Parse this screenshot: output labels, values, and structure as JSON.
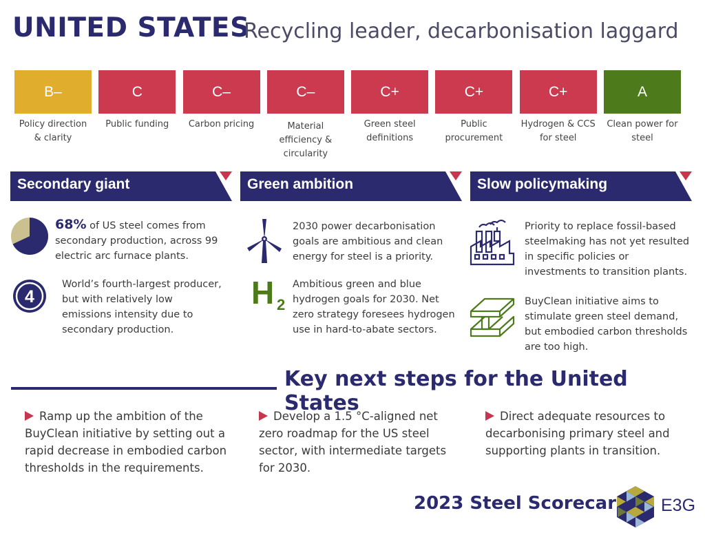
{
  "header": {
    "title": "UNITED STATES",
    "subtitle": "Recycling leader, decarbonisation laggard"
  },
  "colors": {
    "navy": "#2b2a6e",
    "grade_yellow": "#e0ad2c",
    "grade_red": "#cc3a50",
    "grade_green": "#4d7a1a",
    "marker_red": "#c8354e"
  },
  "scores": [
    {
      "grade": "B–",
      "label": "Policy direction & clarity",
      "color": "#e0ad2c"
    },
    {
      "grade": "C",
      "label": "Public funding",
      "color": "#cc3a50"
    },
    {
      "grade": "C–",
      "label": "Carbon pricing",
      "color": "#cc3a50"
    },
    {
      "grade": "C–",
      "label": "Material efficiency & circularity",
      "color": "#cc3a50"
    },
    {
      "grade": "C+",
      "label": "Green steel definitions",
      "color": "#cc3a50"
    },
    {
      "grade": "C+",
      "label": "Public procurement",
      "color": "#cc3a50"
    },
    {
      "grade": "C+",
      "label": "Hydrogen & CCS for steel",
      "color": "#cc3a50"
    },
    {
      "grade": "A",
      "label": "Clean power for steel",
      "color": "#4d7a1a"
    }
  ],
  "sections": {
    "secondary": {
      "title": "Secondary giant",
      "stat_value": "68%",
      "stat_fraction": 0.68,
      "stat_text": " of US steel comes from secondary production, across 99 electric arc furnace plants.",
      "rank_number": "4",
      "rank_text": "World’s fourth-largest producer, but with relatively low emissions intensity due to secondary production."
    },
    "green": {
      "title": "Green ambition",
      "wind_text": "2030 power decarbonisation goals are ambitious and clean energy for steel is a priority.",
      "h2_main": "H",
      "h2_sub": "2",
      "hydrogen_text": "Ambitious green and blue hydrogen goals for 2030. Net zero strategy foresees hydrogen use in hard-to-abate sectors."
    },
    "slow": {
      "title": "Slow policymaking",
      "factory_text": "Priority to replace fossil-based steelmaking has not yet resulted in specific policies or investments to transition plants.",
      "buyclean_text": "BuyClean initiative aims to stimulate green steel demand, but embodied carbon thresholds are too high."
    }
  },
  "next_steps": {
    "title": "Key next steps for the United States",
    "items": [
      "Ramp up the ambition of the BuyClean initiative by setting out a rapid decrease in embodied carbon thresholds in the requirements.",
      "Develop a 1.5 °C-aligned net zero roadmap for the US steel sector, with intermediate targets for 2030.",
      "Direct adequate resources to decarbonising primary steel and supporting plants in transition."
    ]
  },
  "footer": {
    "scorecard": "2023 Steel Scorecard",
    "brand": "E3G"
  }
}
